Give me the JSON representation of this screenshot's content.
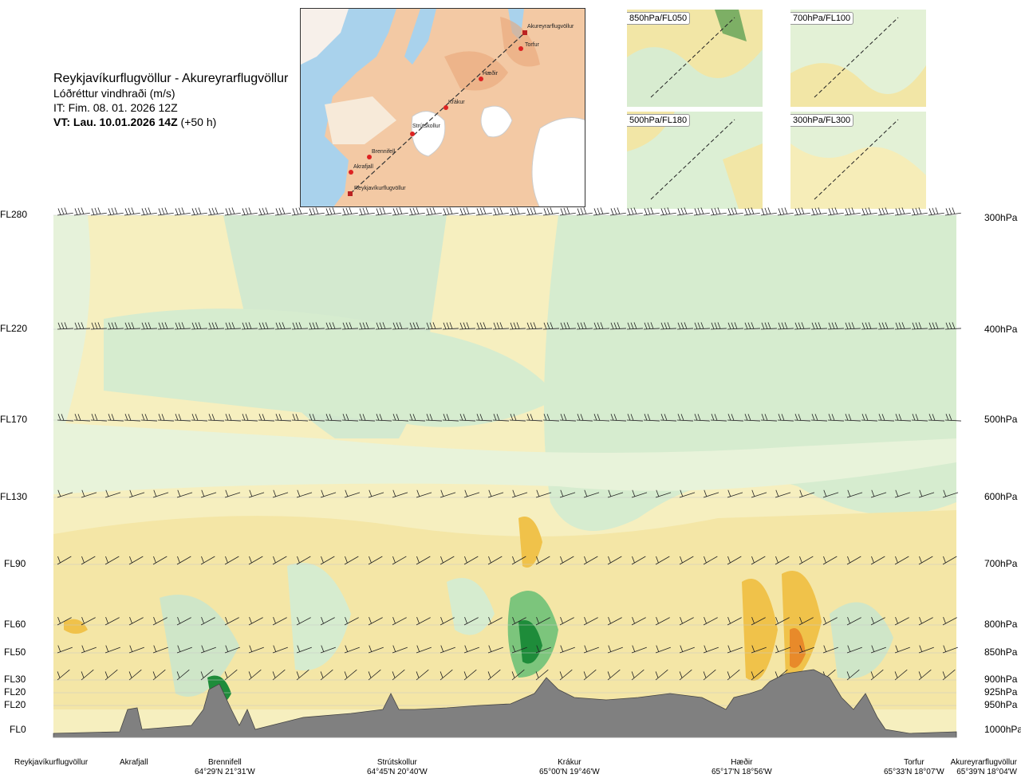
{
  "header": {
    "route": "Reykjavíkurflugvöllur - Akureyrarflugvöllur",
    "variable": "Lóðréttur vindhraði (m/s)",
    "issue_time": "IT: Fim. 08. 01. 2026 12Z",
    "valid_prefix": "VT: Lau. 10.01.2026 14Z",
    "valid_suffix": "(+50 h)"
  },
  "map": {
    "stations": [
      "Akureyrarflugvöllur",
      "Torfur",
      "Hæðir",
      "Krákur",
      "Strútskollur",
      "Brennifell",
      "Akrafjall",
      "Reykjavíkurflugvöllur"
    ]
  },
  "insets": [
    {
      "label": "850hPa/FL050"
    },
    {
      "label": "700hPa/FL100"
    },
    {
      "label": "500hPa/FL180"
    },
    {
      "label": "300hPa/FL300"
    }
  ],
  "colors": {
    "strong_down": "#e88a2a",
    "down": "#f0c24a",
    "weak_down": "#f4e6a0",
    "neutral": "#fbf7d8",
    "weak_up": "#e8f3d8",
    "up": "#c8e6c8",
    "strong_up": "#1e8c3a",
    "terrain": "#808080"
  },
  "chart_data": {
    "type": "heatmap",
    "levels_left": [
      "FL280",
      "FL220",
      "FL170",
      "FL130",
      "FL90",
      "FL60",
      "FL50",
      "FL30",
      "FL20",
      "FL20",
      "FL0"
    ],
    "levels_right": [
      "300hPa",
      "400hPa",
      "500hPa",
      "600hPa",
      "700hPa",
      "800hPa",
      "850hPa",
      "900hPa",
      "925hPa",
      "950hPa",
      "1000hPa"
    ],
    "stations": [
      {
        "name": "Reykjavíkurflugvöllur",
        "coord": ""
      },
      {
        "name": "Akrafjall",
        "coord": ""
      },
      {
        "name": "Brennifell",
        "coord": "64°29'N 21°31'W"
      },
      {
        "name": "Strútskollur",
        "coord": "64°45'N 20°40'W"
      },
      {
        "name": "Krákur",
        "coord": "65°00'N 19°46'W"
      },
      {
        "name": "Hæðir",
        "coord": "65°17'N 18°56'W"
      },
      {
        "name": "Torfur",
        "coord": "65°33'N 18°07'W"
      },
      {
        "name": "Akureyrarflugvöllur",
        "coord": "65°39'N 18°04'W"
      }
    ]
  }
}
